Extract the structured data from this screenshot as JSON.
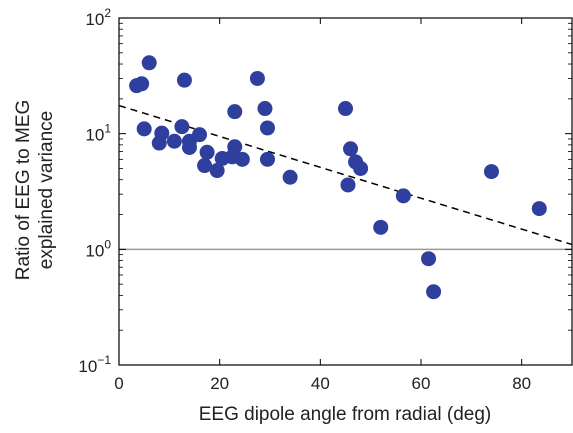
{
  "chart_data": {
    "type": "scatter",
    "xlabel": "EEG dipole angle from radial (deg)",
    "ylabel_lines": [
      "Ratio of EEG to MEG",
      "explained variance"
    ],
    "xlim": [
      0,
      90
    ],
    "ylim": [
      0.1,
      100
    ],
    "y_scale": "log",
    "x_ticks": [
      {
        "value": 0,
        "label": "0"
      },
      {
        "value": 20,
        "label": "20"
      },
      {
        "value": 40,
        "label": "40"
      },
      {
        "value": 60,
        "label": "60"
      },
      {
        "value": 80,
        "label": "80"
      }
    ],
    "y_ticks": [
      {
        "value": 0.1,
        "base": "10",
        "exp": "−1"
      },
      {
        "value": 1,
        "base": "10",
        "exp": "0"
      },
      {
        "value": 10,
        "base": "10",
        "exp": "1"
      },
      {
        "value": 100,
        "base": "10",
        "exp": "2"
      }
    ],
    "grid": false,
    "point_color": "#2e3f9e",
    "reference_line": {
      "y": 1,
      "color": "#999999"
    },
    "trend_line": {
      "x": [
        0,
        90
      ],
      "y": [
        17.5,
        1.1
      ],
      "style": "dashed",
      "color": "#000000"
    },
    "points": [
      {
        "x": 3.5,
        "y": 26
      },
      {
        "x": 4.5,
        "y": 27
      },
      {
        "x": 6,
        "y": 41
      },
      {
        "x": 5,
        "y": 11
      },
      {
        "x": 8,
        "y": 8.3
      },
      {
        "x": 8.5,
        "y": 10.1
      },
      {
        "x": 11,
        "y": 8.6
      },
      {
        "x": 12.5,
        "y": 11.5
      },
      {
        "x": 13,
        "y": 29
      },
      {
        "x": 14,
        "y": 7.6
      },
      {
        "x": 14,
        "y": 8.6
      },
      {
        "x": 16,
        "y": 9.8
      },
      {
        "x": 17,
        "y": 5.3
      },
      {
        "x": 17.5,
        "y": 6.9
      },
      {
        "x": 19.5,
        "y": 4.8
      },
      {
        "x": 20.5,
        "y": 6.1
      },
      {
        "x": 22.5,
        "y": 6.3
      },
      {
        "x": 23,
        "y": 7.7
      },
      {
        "x": 23,
        "y": 15.5
      },
      {
        "x": 24.5,
        "y": 6.0
      },
      {
        "x": 27.5,
        "y": 30
      },
      {
        "x": 29,
        "y": 16.5
      },
      {
        "x": 29.5,
        "y": 11.2
      },
      {
        "x": 29.5,
        "y": 6.0
      },
      {
        "x": 34,
        "y": 4.2
      },
      {
        "x": 45,
        "y": 16.5
      },
      {
        "x": 45.5,
        "y": 3.6
      },
      {
        "x": 46,
        "y": 7.4
      },
      {
        "x": 47,
        "y": 5.7
      },
      {
        "x": 48,
        "y": 5.0
      },
      {
        "x": 52,
        "y": 1.55
      },
      {
        "x": 56.5,
        "y": 2.9
      },
      {
        "x": 61.5,
        "y": 0.83
      },
      {
        "x": 62.5,
        "y": 0.43
      },
      {
        "x": 74,
        "y": 4.7
      },
      {
        "x": 83.5,
        "y": 2.25
      }
    ]
  }
}
